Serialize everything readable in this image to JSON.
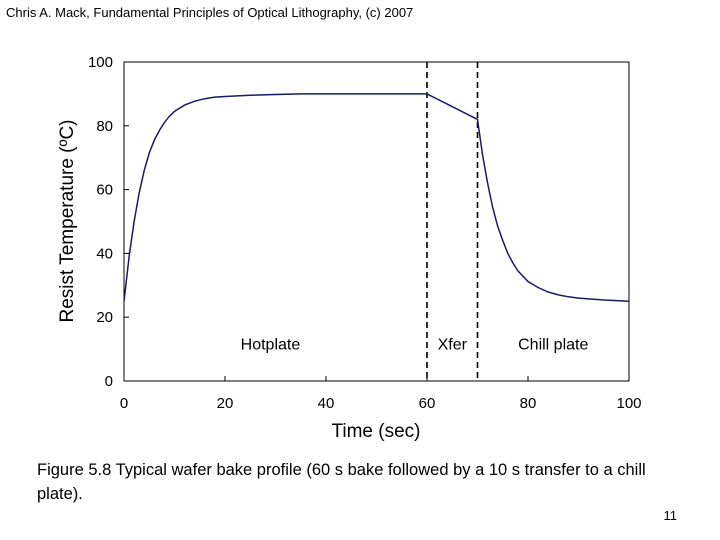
{
  "header": {
    "text": "Chris A. Mack, Fundamental Principles of Optical Lithography, (c) 2007"
  },
  "chart_data": {
    "type": "line",
    "title": "",
    "xlabel": "Time (sec)",
    "ylabel": "Resist Temperature (ºC)",
    "xlim": [
      0,
      100
    ],
    "ylim": [
      0,
      100
    ],
    "xticks": [
      0,
      20,
      40,
      60,
      80,
      100
    ],
    "yticks": [
      0,
      20,
      40,
      60,
      80,
      100
    ],
    "grid": false,
    "series": [
      {
        "name": "Resist temperature",
        "color": "#1a1a66",
        "x": [
          0,
          1,
          2,
          3,
          4,
          5,
          6,
          7,
          8,
          9,
          10,
          12,
          14,
          16,
          18,
          20,
          25,
          30,
          35,
          40,
          50,
          60,
          62,
          64,
          66,
          68,
          70,
          71,
          72,
          73,
          74,
          75,
          76,
          77,
          78,
          80,
          82,
          84,
          86,
          88,
          90,
          95,
          100
        ],
        "y": [
          25,
          39,
          50,
          59,
          66,
          71.5,
          75.5,
          78.5,
          81,
          83,
          84.5,
          86.5,
          87.7,
          88.5,
          89,
          89.2,
          89.6,
          89.8,
          90,
          90,
          90,
          90,
          88.4,
          86.8,
          85.2,
          83.6,
          82,
          71,
          62,
          54.5,
          48.5,
          44,
          40,
          37,
          34.5,
          31.2,
          29.3,
          27.9,
          27,
          26.4,
          26,
          25.4,
          25
        ]
      }
    ],
    "vlines": [
      {
        "x": 60,
        "style": "dashed"
      },
      {
        "x": 70,
        "style": "dashed"
      }
    ],
    "annotations": [
      {
        "text": "Hotplate",
        "x": 29,
        "y": 11.5
      },
      {
        "text": "Xfer",
        "x": 65,
        "y": 11.5
      },
      {
        "text": "Chill plate",
        "x": 85,
        "y": 11.5
      }
    ]
  },
  "caption": {
    "text": "Figure 5.8  Typical wafer bake profile (60 s bake followed by a 10 s transfer to a chill plate)."
  },
  "page_number": "11"
}
